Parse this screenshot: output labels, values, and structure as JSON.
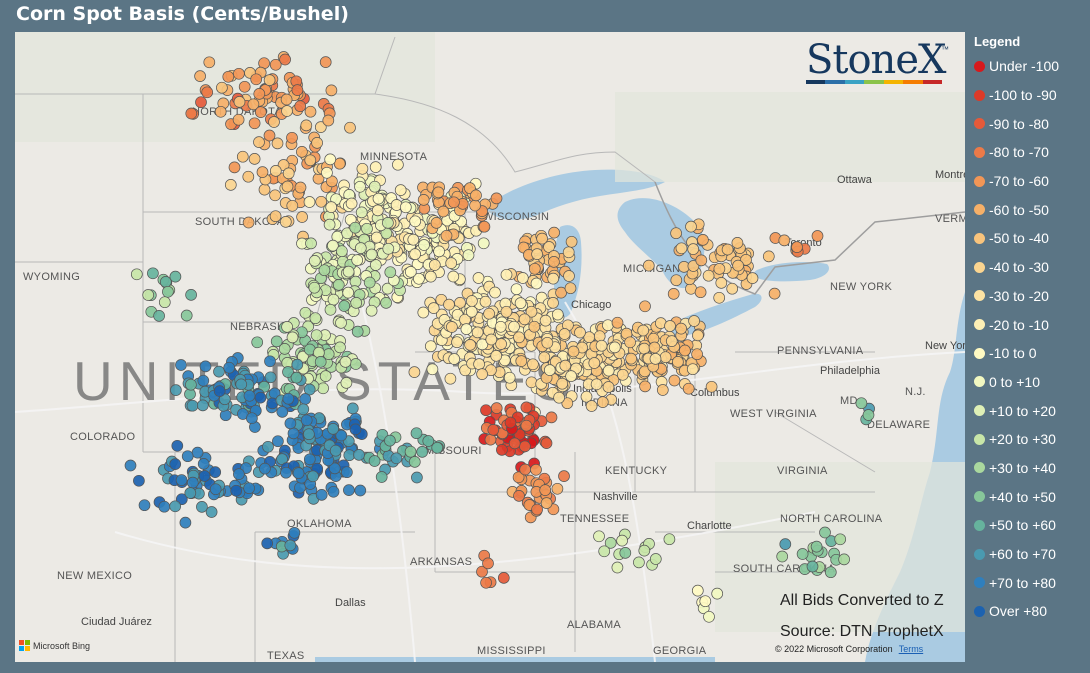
{
  "title": "Corn Spot Basis (Cents/Bushel)",
  "legend": {
    "title": "Legend",
    "items": [
      {
        "label": "Under -100",
        "color": "#d7191c"
      },
      {
        "label": "-100 to -90",
        "color": "#dc3a28"
      },
      {
        "label": "-90 to -80",
        "color": "#e55a3a"
      },
      {
        "label": "-80 to -70",
        "color": "#ec7a48"
      },
      {
        "label": "-70 to -60",
        "color": "#f29656"
      },
      {
        "label": "-60 to -50",
        "color": "#f6b068"
      },
      {
        "label": "-50 to -40",
        "color": "#f9c47c"
      },
      {
        "label": "-40 to -30",
        "color": "#fbd590"
      },
      {
        "label": "-30 to -20",
        "color": "#fde3a3"
      },
      {
        "label": "-20 to -10",
        "color": "#fef0b5"
      },
      {
        "label": "-10 to 0",
        "color": "#fffac3"
      },
      {
        "label": "0 to +10",
        "color": "#f2f8c1"
      },
      {
        "label": "+10 to +20",
        "color": "#dff0b6"
      },
      {
        "label": "+20 to +30",
        "color": "#c8e6a8"
      },
      {
        "label": "+30 to +40",
        "color": "#aad89e"
      },
      {
        "label": "+40 to +50",
        "color": "#87c79a"
      },
      {
        "label": "+50 to +60",
        "color": "#66b39d"
      },
      {
        "label": "+60 to +70",
        "color": "#4a9ab0"
      },
      {
        "label": "+70 to +80",
        "color": "#2f7fbd"
      },
      {
        "label": "Over +80",
        "color": "#1c62b0"
      }
    ]
  },
  "logo": {
    "text": "StoneX",
    "tm": "™"
  },
  "annotations": {
    "converted": "All Bids Converted to Z",
    "source": "Source: DTN ProphetX",
    "copyright": "© 2022 Microsoft Corporation",
    "terms": "Terms",
    "bing": "Microsoft Bing"
  },
  "map_labels": {
    "country": "UNITED STATES",
    "states": [
      "NORTH DAKOTA",
      "SOUTH DAKOTA",
      "MINNESOTA",
      "WISCONSIN",
      "MICHIGAN",
      "WYOMING",
      "NEBRASKA",
      "COLORADO",
      "MISSOURI",
      "KENTUCKY",
      "TENNESSEE",
      "OKLAHOMA",
      "ARKANSAS",
      "NEW MEXICO",
      "TEXAS",
      "ALABAMA",
      "GEORGIA",
      "MISSISSIPPI",
      "NEW YORK",
      "PENNSYLVANIA",
      "WEST VIRGINIA",
      "VIRGINIA",
      "NORTH CAROLINA",
      "SOUTH CAROLINA",
      "INDIANA",
      "MD.",
      "DELAWARE",
      "N.J.",
      "VERMONT"
    ],
    "cities": [
      "Chicago",
      "Columbus",
      "Nashville",
      "Charlotte",
      "Dallas",
      "Ciudad Juárez",
      "Ottawa",
      "Toronto",
      "New York",
      "Philadelphia",
      "Montreal",
      "Indianapolis"
    ]
  }
}
